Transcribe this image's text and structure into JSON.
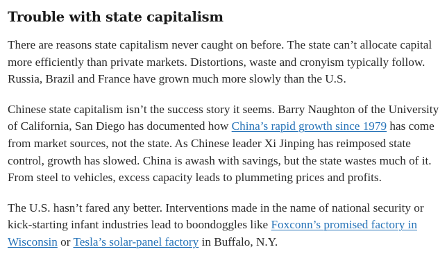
{
  "article": {
    "heading": "Trouble with state capitalism",
    "p1": {
      "text": "There are reasons state capitalism never caught on before. The state can’t allocate capital more efficiently than private markets. Distortions, waste and cronyism typically follow. Russia, Brazil and France have grown much more slowly than the U.S."
    },
    "p2": {
      "before_link": "Chinese state capitalism isn’t the success story it seems. Barry Naughton of the University of California, San Diego has documented how ",
      "link": "China’s rapid growth since 1979",
      "after_link": " has come from market sources, not the state. As Chinese leader Xi Jinping has reimposed state control, growth has slowed. China is awash with savings, but the state wastes much of it. From steel to vehicles, excess capacity leads to plummeting prices and profits."
    },
    "p3": {
      "before_link1": "The U.S. hasn’t fared any better. Interventions made in the name of national security or kick-starting infant industries lead to boondoggles like ",
      "link1": "Foxconn’s promised factory in Wisconsin",
      "between_links": " or ",
      "link2": "Tesla’s solar-panel factory",
      "after_link2": " in Buffalo, N.Y."
    },
    "colors": {
      "text": "#2a2a2a",
      "heading": "#1a1a1a",
      "link": "#2673b8",
      "background": "#ffffff"
    }
  }
}
